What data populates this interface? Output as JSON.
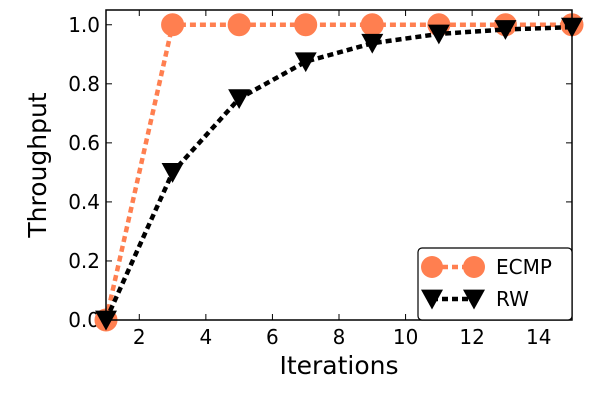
{
  "chart_data": {
    "type": "line",
    "title": "",
    "xlabel": "Iterations",
    "ylabel": "Throughput",
    "xlim": [
      1,
      15
    ],
    "ylim": [
      0.0,
      1.05
    ],
    "xticks": [
      2,
      4,
      6,
      8,
      10,
      12,
      14
    ],
    "xtick_labels": [
      "2",
      "4",
      "6",
      "8",
      "10",
      "12",
      "14"
    ],
    "yticks": [
      0.0,
      0.2,
      0.4,
      0.6,
      0.8,
      1.0
    ],
    "ytick_labels": [
      "0.0",
      "0.2",
      "0.4",
      "0.6",
      "0.8",
      "1.0"
    ],
    "grid": false,
    "legend_position": "bottom-right",
    "series": [
      {
        "name": "ECMP",
        "color": "#ff7f50",
        "line_style": "dotted",
        "marker": "circle",
        "x": [
          1,
          3,
          5,
          7,
          9,
          11,
          13,
          15
        ],
        "y": [
          0.0,
          1.0,
          1.0,
          1.0,
          1.0,
          1.0,
          1.0,
          1.0
        ]
      },
      {
        "name": "RW",
        "color": "#000000",
        "line_style": "dotted",
        "marker": "triangle-down",
        "x": [
          1,
          3,
          5,
          7,
          9,
          11,
          13,
          15
        ],
        "y": [
          0.0,
          0.5,
          0.75,
          0.875,
          0.9375,
          0.969,
          0.984,
          0.992
        ]
      }
    ]
  }
}
